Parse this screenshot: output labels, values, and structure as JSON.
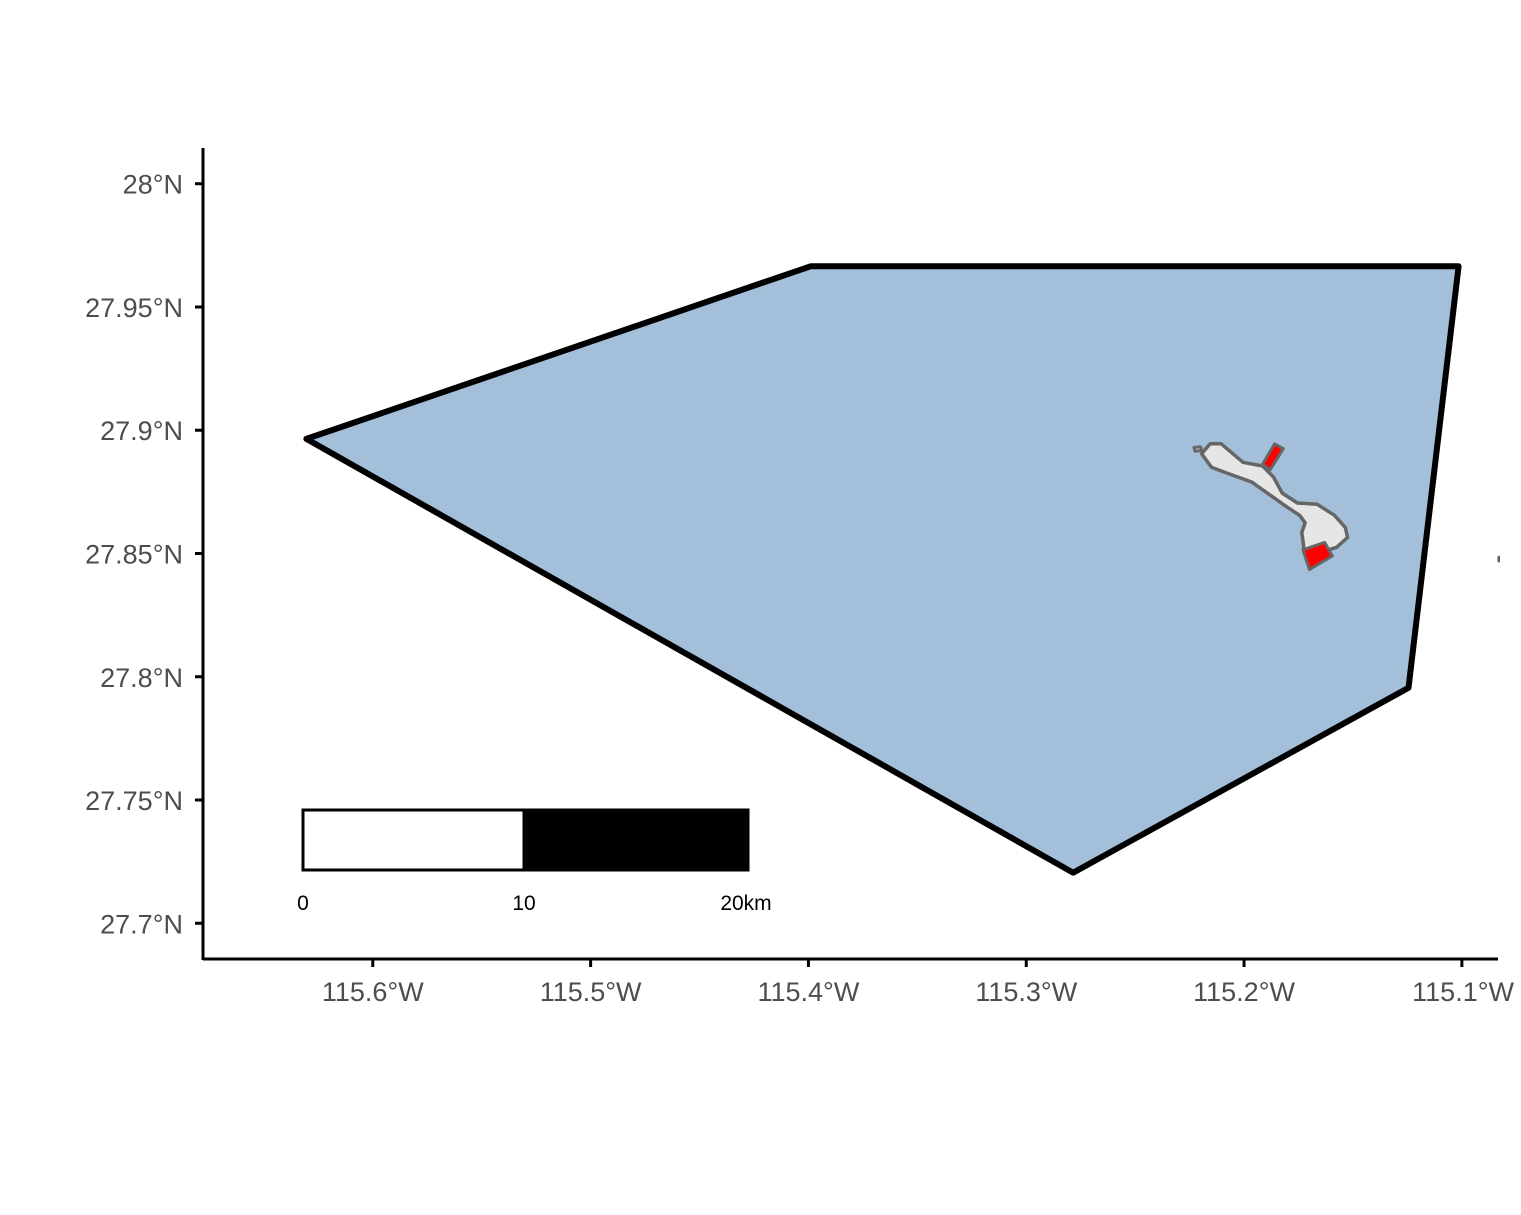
{
  "map": {
    "type": "map",
    "crs": "lon/lat",
    "xlim": [
      -115.6775,
      -115.0825
    ],
    "ylim": [
      27.6855,
      28.0145
    ],
    "x_ticks": [
      {
        "value": -115.6,
        "label": "115.6°W"
      },
      {
        "value": -115.5,
        "label": "115.5°W"
      },
      {
        "value": -115.4,
        "label": "115.4°W"
      },
      {
        "value": -115.3,
        "label": "115.3°W"
      },
      {
        "value": -115.2,
        "label": "115.2°W"
      },
      {
        "value": -115.1,
        "label": "115.1°W"
      }
    ],
    "y_ticks": [
      {
        "value": 28.0,
        "label": "28°N"
      },
      {
        "value": 27.95,
        "label": "27.95°N"
      },
      {
        "value": 27.9,
        "label": "27.9°N"
      },
      {
        "value": 27.85,
        "label": "27.85°N"
      },
      {
        "value": 27.8,
        "label": "27.8°N"
      },
      {
        "value": 27.75,
        "label": "27.75°N"
      },
      {
        "value": 27.7,
        "label": "27.7°N"
      }
    ],
    "colors": {
      "study_area_fill": "#a3bfd9",
      "study_area_stroke": "#000000",
      "island_fill": "#e6e6e6",
      "island_stroke": "#666666",
      "highlight_fill": "#ff0000",
      "axis": "#000000",
      "tick_text": "#4d4d4d"
    },
    "layers": {
      "study_area": {
        "coords": [
          [
            -115.399,
            27.9665
          ],
          [
            -115.1015,
            27.9665
          ],
          [
            -115.1245,
            27.7955
          ],
          [
            -115.2785,
            27.7205
          ],
          [
            -115.6305,
            27.8965
          ],
          [
            -115.399,
            27.9665
          ]
        ]
      },
      "island": {
        "coords": [
          [
            -115.2155,
            27.8946
          ],
          [
            -115.2105,
            27.8945
          ],
          [
            -115.2005,
            27.887
          ],
          [
            -115.1915,
            27.8855
          ],
          [
            -115.1865,
            27.881
          ],
          [
            -115.1825,
            27.8745
          ],
          [
            -115.1755,
            27.8705
          ],
          [
            -115.1665,
            27.87
          ],
          [
            -115.1585,
            27.8655
          ],
          [
            -115.1535,
            27.8605
          ],
          [
            -115.1525,
            27.8565
          ],
          [
            -115.1575,
            27.8525
          ],
          [
            -115.1665,
            27.85
          ],
          [
            -115.1725,
            27.852
          ],
          [
            -115.1735,
            27.8585
          ],
          [
            -115.172,
            27.8625
          ],
          [
            -115.1745,
            27.8655
          ],
          [
            -115.1805,
            27.869
          ],
          [
            -115.1885,
            27.874
          ],
          [
            -115.1965,
            27.879
          ],
          [
            -115.2075,
            27.8825
          ],
          [
            -115.215,
            27.885
          ],
          [
            -115.2195,
            27.8905
          ],
          [
            -115.2155,
            27.8946
          ]
        ]
      },
      "islet": {
        "coords": [
          [
            -115.223,
            27.893
          ],
          [
            -115.22,
            27.8933
          ],
          [
            -115.2195,
            27.8918
          ],
          [
            -115.2225,
            27.8915
          ],
          [
            -115.223,
            27.893
          ]
        ]
      },
      "distant_islet": {
        "coords": [
          [
            -115.083,
            27.8485
          ],
          [
            -115.0825,
            27.8485
          ],
          [
            -115.0825,
            27.847
          ],
          [
            -115.083,
            27.847
          ],
          [
            -115.083,
            27.8485
          ]
        ]
      },
      "highlights": [
        {
          "coords": [
            [
              -115.186,
              27.8945
            ],
            [
              -115.182,
              27.8925
            ],
            [
              -115.188,
              27.884
            ],
            [
              -115.1915,
              27.8862
            ],
            [
              -115.186,
              27.8945
            ]
          ]
        },
        {
          "coords": [
            [
              -115.173,
              27.8515
            ],
            [
              -115.163,
              27.8545
            ],
            [
              -115.1595,
              27.849
            ],
            [
              -115.17,
              27.8435
            ],
            [
              -115.173,
              27.8515
            ]
          ]
        }
      ]
    },
    "scale_bar": {
      "segments": [
        {
          "from_km": 0,
          "to_km": 10,
          "color": "#ffffff"
        },
        {
          "from_km": 10,
          "to_km": 20,
          "color": "#000000"
        }
      ],
      "labels": [
        "0",
        "10",
        "20km"
      ]
    }
  }
}
